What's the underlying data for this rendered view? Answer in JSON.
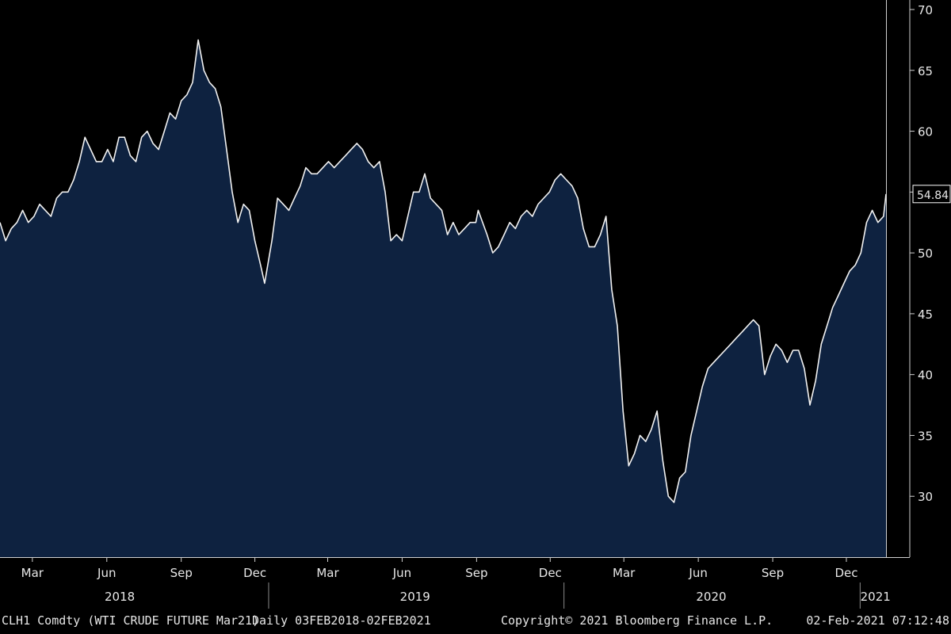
{
  "footer": {
    "ticker": "CLH1 Comdty (WTI CRUDE FUTURE  Mar21)",
    "range": "Daily 03FEB2018-02FEB2021",
    "copyright": "Copyright© 2021 Bloomberg Finance L.P.",
    "timestamp": "02-Feb-2021 07:12:48"
  },
  "colors": {
    "background": "#000000",
    "area_fill": "#0e2240",
    "line": "#f2f2f2",
    "axis": "#d0d0d0",
    "label_box": "#ffffff"
  },
  "chart_data": {
    "type": "area",
    "title": "",
    "xlabel": "",
    "ylabel": "",
    "y_axis_side": "right",
    "ylim": [
      25,
      70
    ],
    "xlim": [
      "2018-02-03",
      "2021-02-02"
    ],
    "grid": false,
    "y_ticks": [
      30,
      35,
      40,
      45,
      50,
      55,
      60,
      65,
      70
    ],
    "last_value_label": "54.84",
    "month_ticks": [
      {
        "label": "Mar",
        "date": "2018-03-15"
      },
      {
        "label": "Jun",
        "date": "2018-06-15"
      },
      {
        "label": "Sep",
        "date": "2018-09-15"
      },
      {
        "label": "Dec",
        "date": "2018-12-15"
      },
      {
        "label": "Mar",
        "date": "2019-03-15"
      },
      {
        "label": "Jun",
        "date": "2019-06-15"
      },
      {
        "label": "Sep",
        "date": "2019-09-15"
      },
      {
        "label": "Dec",
        "date": "2019-12-15"
      },
      {
        "label": "Mar",
        "date": "2020-03-15"
      },
      {
        "label": "Jun",
        "date": "2020-06-15"
      },
      {
        "label": "Sep",
        "date": "2020-09-15"
      },
      {
        "label": "Dec",
        "date": "2020-12-15"
      }
    ],
    "year_labels": [
      {
        "label": "2018",
        "date": "2018-07-01"
      },
      {
        "label": "2019",
        "date": "2019-07-01"
      },
      {
        "label": "2020",
        "date": "2020-07-01"
      },
      {
        "label": "2021",
        "date": "2021-01-20"
      }
    ],
    "year_separators": [
      "2019-01-01",
      "2020-01-01",
      "2021-01-01"
    ],
    "series": [
      {
        "values": [
          [
            "2018-02-03",
            52.5
          ],
          [
            "2018-02-10",
            51.0
          ],
          [
            "2018-02-17",
            52.0
          ],
          [
            "2018-02-24",
            52.5
          ],
          [
            "2018-03-03",
            53.5
          ],
          [
            "2018-03-10",
            52.5
          ],
          [
            "2018-03-17",
            53.0
          ],
          [
            "2018-03-24",
            54.0
          ],
          [
            "2018-03-31",
            53.5
          ],
          [
            "2018-04-07",
            53.0
          ],
          [
            "2018-04-14",
            54.5
          ],
          [
            "2018-04-21",
            55.0
          ],
          [
            "2018-04-28",
            55.0
          ],
          [
            "2018-05-05",
            56.0
          ],
          [
            "2018-05-12",
            57.5
          ],
          [
            "2018-05-19",
            59.5
          ],
          [
            "2018-05-26",
            58.5
          ],
          [
            "2018-06-02",
            57.5
          ],
          [
            "2018-06-09",
            57.5
          ],
          [
            "2018-06-16",
            58.5
          ],
          [
            "2018-06-23",
            57.5
          ],
          [
            "2018-06-30",
            59.5
          ],
          [
            "2018-07-07",
            59.5
          ],
          [
            "2018-07-14",
            58.0
          ],
          [
            "2018-07-21",
            57.5
          ],
          [
            "2018-07-28",
            59.5
          ],
          [
            "2018-08-04",
            60.0
          ],
          [
            "2018-08-11",
            59.0
          ],
          [
            "2018-08-18",
            58.5
          ],
          [
            "2018-08-25",
            60.0
          ],
          [
            "2018-09-01",
            61.5
          ],
          [
            "2018-09-08",
            61.0
          ],
          [
            "2018-09-15",
            62.5
          ],
          [
            "2018-09-22",
            63.0
          ],
          [
            "2018-09-29",
            64.0
          ],
          [
            "2018-10-06",
            67.5
          ],
          [
            "2018-10-13",
            65.0
          ],
          [
            "2018-10-20",
            64.0
          ],
          [
            "2018-10-27",
            63.5
          ],
          [
            "2018-11-03",
            62.0
          ],
          [
            "2018-11-10",
            58.5
          ],
          [
            "2018-11-17",
            55.0
          ],
          [
            "2018-11-24",
            52.5
          ],
          [
            "2018-12-01",
            54.0
          ],
          [
            "2018-12-08",
            53.5
          ],
          [
            "2018-12-15",
            51.0
          ],
          [
            "2018-12-22",
            49.0
          ],
          [
            "2018-12-27",
            47.5
          ],
          [
            "2019-01-05",
            51.0
          ],
          [
            "2019-01-12",
            54.5
          ],
          [
            "2019-01-19",
            54.0
          ],
          [
            "2019-01-26",
            53.5
          ],
          [
            "2019-02-02",
            54.5
          ],
          [
            "2019-02-09",
            55.5
          ],
          [
            "2019-02-16",
            57.0
          ],
          [
            "2019-02-23",
            56.5
          ],
          [
            "2019-03-02",
            56.5
          ],
          [
            "2019-03-09",
            57.0
          ],
          [
            "2019-03-16",
            57.5
          ],
          [
            "2019-03-23",
            57.0
          ],
          [
            "2019-03-30",
            57.5
          ],
          [
            "2019-04-06",
            58.0
          ],
          [
            "2019-04-13",
            58.5
          ],
          [
            "2019-04-20",
            59.0
          ],
          [
            "2019-04-27",
            58.5
          ],
          [
            "2019-05-04",
            57.5
          ],
          [
            "2019-05-11",
            57.0
          ],
          [
            "2019-05-18",
            57.5
          ],
          [
            "2019-05-25",
            55.0
          ],
          [
            "2019-06-01",
            51.0
          ],
          [
            "2019-06-08",
            51.5
          ],
          [
            "2019-06-15",
            51.0
          ],
          [
            "2019-06-22",
            53.0
          ],
          [
            "2019-06-29",
            55.0
          ],
          [
            "2019-07-06",
            55.0
          ],
          [
            "2019-07-13",
            56.5
          ],
          [
            "2019-07-20",
            54.5
          ],
          [
            "2019-07-27",
            54.0
          ],
          [
            "2019-08-03",
            53.5
          ],
          [
            "2019-08-10",
            51.5
          ],
          [
            "2019-08-17",
            52.5
          ],
          [
            "2019-08-24",
            51.5
          ],
          [
            "2019-08-31",
            52.0
          ],
          [
            "2019-09-07",
            52.5
          ],
          [
            "2019-09-14",
            52.5
          ],
          [
            "2019-09-17",
            53.5
          ],
          [
            "2019-09-28",
            51.5
          ],
          [
            "2019-10-05",
            50.0
          ],
          [
            "2019-10-12",
            50.5
          ],
          [
            "2019-10-19",
            51.5
          ],
          [
            "2019-10-26",
            52.5
          ],
          [
            "2019-11-02",
            52.0
          ],
          [
            "2019-11-09",
            53.0
          ],
          [
            "2019-11-16",
            53.5
          ],
          [
            "2019-11-23",
            53.0
          ],
          [
            "2019-11-30",
            54.0
          ],
          [
            "2019-12-07",
            54.5
          ],
          [
            "2019-12-14",
            55.0
          ],
          [
            "2019-12-21",
            56.0
          ],
          [
            "2019-12-28",
            56.5
          ],
          [
            "2020-01-04",
            56.0
          ],
          [
            "2020-01-11",
            55.5
          ],
          [
            "2020-01-18",
            54.5
          ],
          [
            "2020-01-25",
            52.0
          ],
          [
            "2020-02-01",
            50.5
          ],
          [
            "2020-02-08",
            50.5
          ],
          [
            "2020-02-15",
            51.5
          ],
          [
            "2020-02-22",
            53.0
          ],
          [
            "2020-02-29",
            47.0
          ],
          [
            "2020-03-07",
            44.0
          ],
          [
            "2020-03-14",
            37.0
          ],
          [
            "2020-03-21",
            32.5
          ],
          [
            "2020-03-28",
            33.5
          ],
          [
            "2020-04-04",
            35.0
          ],
          [
            "2020-04-11",
            34.5
          ],
          [
            "2020-04-18",
            35.5
          ],
          [
            "2020-04-25",
            37.0
          ],
          [
            "2020-05-02",
            33.0
          ],
          [
            "2020-05-09",
            30.0
          ],
          [
            "2020-05-16",
            29.5
          ],
          [
            "2020-05-23",
            31.5
          ],
          [
            "2020-05-30",
            32.0
          ],
          [
            "2020-06-06",
            35.0
          ],
          [
            "2020-06-13",
            37.0
          ],
          [
            "2020-06-20",
            39.0
          ],
          [
            "2020-06-27",
            40.5
          ],
          [
            "2020-07-04",
            41.0
          ],
          [
            "2020-07-11",
            41.5
          ],
          [
            "2020-07-18",
            42.0
          ],
          [
            "2020-07-25",
            42.5
          ],
          [
            "2020-08-01",
            43.0
          ],
          [
            "2020-08-08",
            43.5
          ],
          [
            "2020-08-15",
            44.0
          ],
          [
            "2020-08-22",
            44.5
          ],
          [
            "2020-08-29",
            44.0
          ],
          [
            "2020-09-05",
            40.0
          ],
          [
            "2020-09-12",
            41.5
          ],
          [
            "2020-09-19",
            42.5
          ],
          [
            "2020-09-26",
            42.0
          ],
          [
            "2020-10-03",
            41.0
          ],
          [
            "2020-10-10",
            42.0
          ],
          [
            "2020-10-17",
            42.0
          ],
          [
            "2020-10-24",
            40.5
          ],
          [
            "2020-10-31",
            37.5
          ],
          [
            "2020-11-07",
            39.5
          ],
          [
            "2020-11-14",
            42.5
          ],
          [
            "2020-11-21",
            44.0
          ],
          [
            "2020-11-28",
            45.5
          ],
          [
            "2020-12-05",
            46.5
          ],
          [
            "2020-12-12",
            47.5
          ],
          [
            "2020-12-19",
            48.5
          ],
          [
            "2020-12-26",
            49.0
          ],
          [
            "2021-01-02",
            50.0
          ],
          [
            "2021-01-09",
            52.5
          ],
          [
            "2021-01-16",
            53.5
          ],
          [
            "2021-01-23",
            52.5
          ],
          [
            "2021-01-30",
            53.0
          ],
          [
            "2021-02-02",
            54.84
          ]
        ]
      }
    ]
  }
}
